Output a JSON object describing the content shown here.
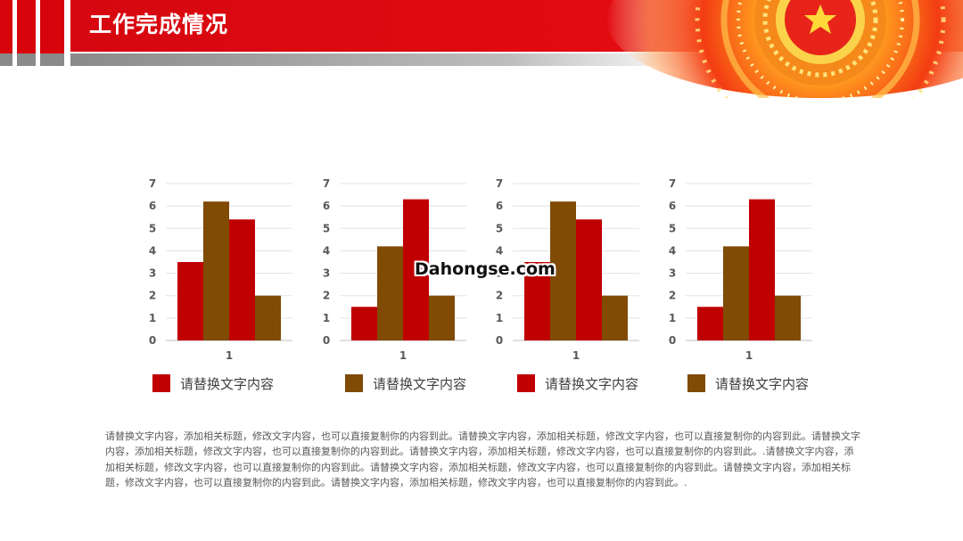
{
  "header": {
    "title": "工作完成情况",
    "colors": {
      "red": "#d8040c",
      "gray": "#8a8a8a"
    },
    "decoration": "star-emblem-icon"
  },
  "colors": {
    "red": "#c00000",
    "brown": "#7f4b05"
  },
  "chart_data": [
    {
      "type": "bar",
      "categories": [
        "1"
      ],
      "series": [
        {
          "values": [
            3.5
          ],
          "color": "#c00000"
        },
        {
          "values": [
            6.2
          ],
          "color": "#7f4b05"
        },
        {
          "values": [
            5.4
          ],
          "color": "#c00000"
        },
        {
          "values": [
            2.0
          ],
          "color": "#7f4b05"
        }
      ],
      "yticks": [
        "0",
        "1",
        "2",
        "3",
        "4",
        "5",
        "6",
        "7"
      ],
      "ylim": [
        0,
        7
      ],
      "grid": true,
      "legend": {
        "label": "请替换文字内容",
        "color": "#c00000",
        "placement": "bottom"
      }
    },
    {
      "type": "bar",
      "categories": [
        "1"
      ],
      "series": [
        {
          "values": [
            1.5
          ],
          "color": "#c00000"
        },
        {
          "values": [
            4.2
          ],
          "color": "#7f4b05"
        },
        {
          "values": [
            6.3
          ],
          "color": "#c00000"
        },
        {
          "values": [
            2.0
          ],
          "color": "#7f4b05"
        }
      ],
      "yticks": [
        "0",
        "1",
        "2",
        "3",
        "4",
        "5",
        "6",
        "7"
      ],
      "ylim": [
        0,
        7
      ],
      "grid": true,
      "legend": {
        "label": "请替换文字内容",
        "color": "#7f4b05",
        "placement": "bottom"
      }
    },
    {
      "type": "bar",
      "categories": [
        "1"
      ],
      "series": [
        {
          "values": [
            3.5
          ],
          "color": "#c00000"
        },
        {
          "values": [
            6.2
          ],
          "color": "#7f4b05"
        },
        {
          "values": [
            5.4
          ],
          "color": "#c00000"
        },
        {
          "values": [
            2.0
          ],
          "color": "#7f4b05"
        }
      ],
      "yticks": [
        "0",
        "1",
        "2",
        "3",
        "4",
        "5",
        "6",
        "7"
      ],
      "ylim": [
        0,
        7
      ],
      "grid": true,
      "legend": {
        "label": "请替换文字内容",
        "color": "#c00000",
        "placement": "bottom"
      }
    },
    {
      "type": "bar",
      "categories": [
        "1"
      ],
      "series": [
        {
          "values": [
            1.5
          ],
          "color": "#c00000"
        },
        {
          "values": [
            4.2
          ],
          "color": "#7f4b05"
        },
        {
          "values": [
            6.3
          ],
          "color": "#c00000"
        },
        {
          "values": [
            2.0
          ],
          "color": "#7f4b05"
        }
      ],
      "yticks": [
        "0",
        "1",
        "2",
        "3",
        "4",
        "5",
        "6",
        "7"
      ],
      "ylim": [
        0,
        7
      ],
      "grid": true,
      "legend": {
        "label": "请替换文字内容",
        "color": "#7f4b05",
        "placement": "bottom"
      }
    }
  ],
  "watermark": "Dahongse.com",
  "body_text": "请替换文字内容，添加相关标题，修改文字内容，也可以直接复制你的内容到此。请替换文字内容，添加相关标题，修改文字内容，也可以直接复制你的内容到此。请替换文字内容，添加相关标题，修改文字内容，也可以直接复制你的内容到此。请替换文字内容，添加相关标题，修改文字内容，也可以直接复制你的内容到此。.请替换文字内容，添加相关标题，修改文字内容，也可以直接复制你的内容到此。请替换文字内容，添加相关标题，修改文字内容，也可以直接复制你的内容到此。请替换文字内容，添加相关标题，修改文字内容，也可以直接复制你的内容到此。请替换文字内容，添加相关标题，修改文字内容，也可以直接复制你的内容到此。."
}
